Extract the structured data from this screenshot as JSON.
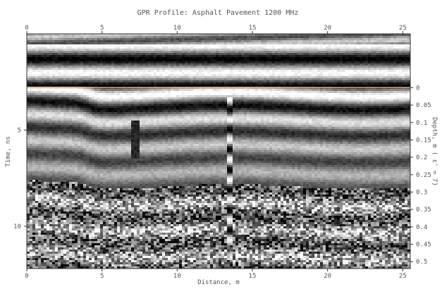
{
  "chart_data": {
    "type": "heatmap",
    "title": "GPR Profile: Asphalt Pavement 1200 MHz",
    "xlabel": "Distance, m",
    "ylabel_left": "Time, ns",
    "ylabel_right": "Depth, m ( ε' = 7)",
    "xlim": [
      0,
      25.5
    ],
    "ylim_time_ns": [
      0,
      12.2
    ],
    "ylim_depth_m": [
      0,
      0.52
    ],
    "depth_zero_time_ns": 2.8,
    "x_ticks": [
      "0",
      "5",
      "10",
      "15",
      "20",
      "25"
    ],
    "x_tick_values": [
      0,
      5,
      10,
      15,
      20,
      25
    ],
    "y_ticks_time": [
      "5",
      "10"
    ],
    "y_tick_values_time": [
      5,
      10
    ],
    "y_ticks_depth": [
      "0",
      "0.05",
      "0.1",
      "0.15",
      "0.2",
      "0.25",
      "0.3",
      "0.35",
      "0.4",
      "0.45",
      "0.5"
    ],
    "y_tick_values_depth": [
      0,
      0.05,
      0.1,
      0.15,
      0.2,
      0.25,
      0.3,
      0.35,
      0.4,
      0.45,
      0.5
    ],
    "surface_line_color": "#e8a070",
    "colormap": "grayscale",
    "features": {
      "layer_step_distance_m": 4.1,
      "vertical_anomaly_distance_m": 13.5,
      "secondary_anomaly_distance_m": 7.2
    }
  }
}
